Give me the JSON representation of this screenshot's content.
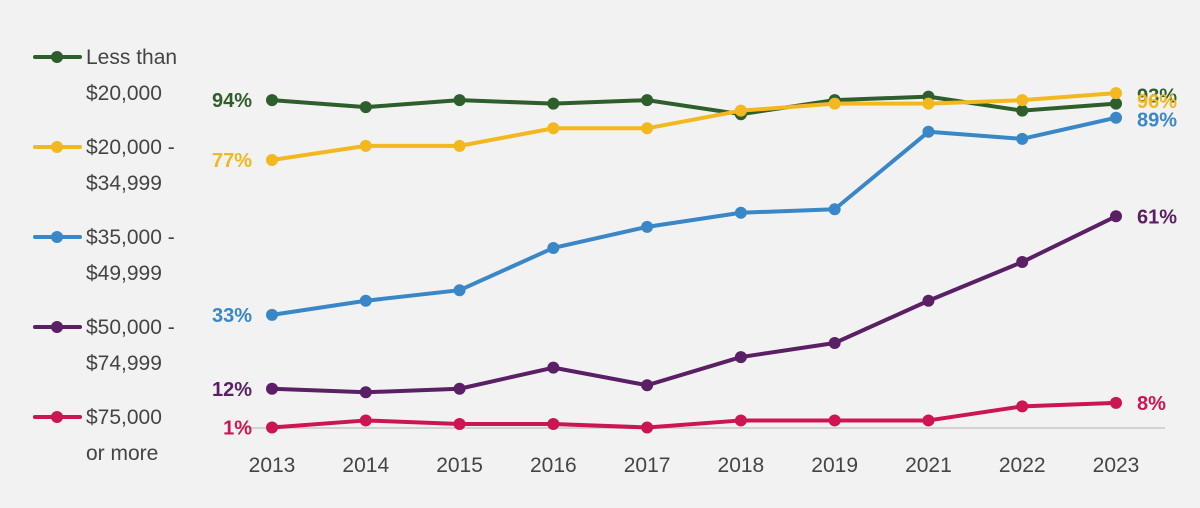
{
  "chart_data": {
    "type": "line",
    "title": "",
    "xlabel": "",
    "ylabel": "",
    "categories": [
      "2013",
      "2014",
      "2015",
      "2016",
      "2017",
      "2018",
      "2019",
      "2021",
      "2022",
      "2023"
    ],
    "ylim": [
      0,
      100
    ],
    "grid": false,
    "legend_placement": "left",
    "series": [
      {
        "name": "Less than $20,000",
        "legend_lines": [
          "Less than",
          "$20,000"
        ],
        "color": "#2e5e2b",
        "values": [
          94,
          92,
          94,
          93,
          94,
          90,
          94,
          95,
          91,
          93
        ],
        "start_label": "94%",
        "end_label": "93%"
      },
      {
        "name": "$20,000 - $34,999",
        "legend_lines": [
          "$20,000 -",
          "$34,999"
        ],
        "color": "#f3b81f",
        "values": [
          77,
          81,
          81,
          86,
          86,
          91,
          93,
          93,
          94,
          96
        ],
        "start_label": "77%",
        "end_label": "96%"
      },
      {
        "name": "$35,000 - $49,999",
        "legend_lines": [
          "$35,000 -",
          "$49,999"
        ],
        "color": "#3a87c8",
        "values": [
          33,
          37,
          40,
          52,
          58,
          62,
          63,
          85,
          83,
          89
        ],
        "start_label": "33%",
        "end_label": "89%"
      },
      {
        "name": "$50,000 - $74,999",
        "legend_lines": [
          "$50,000 -",
          "$74,999"
        ],
        "color": "#5a1f64",
        "values": [
          12,
          11,
          12,
          18,
          13,
          21,
          25,
          37,
          48,
          61
        ],
        "start_label": "12%",
        "end_label": "61%"
      },
      {
        "name": "$75,000 or more",
        "legend_lines": [
          "$75,000",
          "or more"
        ],
        "color": "#cc1553",
        "values": [
          1,
          3,
          2,
          2,
          1,
          3,
          3,
          3,
          7,
          8
        ],
        "start_label": "1%",
        "end_label": "8%"
      }
    ]
  }
}
